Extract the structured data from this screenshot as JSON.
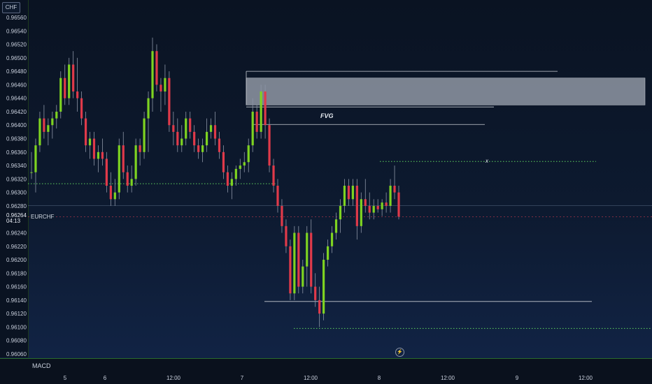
{
  "chart": {
    "currency": "CHF",
    "symbol": "EURCHF",
    "last_price": "0.96264",
    "countdown": "04:13",
    "annotations": {
      "fvg": "FVG",
      "x_mark": "x"
    },
    "indicator_pane": "MACD",
    "icons": {
      "flash": "lightning-icon"
    },
    "colors": {
      "bull": "#7ed321",
      "bear": "#e03a4a",
      "background": "#0d1a30",
      "dotted_level": "#5fd35f",
      "fvg_zone": "#8f96a3"
    }
  },
  "chart_data": {
    "type": "candlestick",
    "symbol": "EURCHF",
    "y_ticks": [
      "0.96560",
      "0.96540",
      "0.96520",
      "0.96500",
      "0.96480",
      "0.96460",
      "0.96440",
      "0.96420",
      "0.96400",
      "0.96380",
      "0.96360",
      "0.96340",
      "0.96320",
      "0.96300",
      "0.96280",
      "0.96260",
      "0.96240",
      "0.96220",
      "0.96200",
      "0.96180",
      "0.96160",
      "0.96140",
      "0.96120",
      "0.96100",
      "0.96080",
      "0.96060"
    ],
    "x_ticks": [
      "5",
      "6",
      "12:00",
      "7",
      "12:00",
      "8",
      "12:00",
      "9",
      "12:00"
    ],
    "ylim": [
      0.96058,
      0.9657
    ],
    "last_price": 0.96264,
    "candles": [
      [
        0.9633,
        0.9636,
        0.9632,
        0.9633
      ],
      [
        0.9633,
        0.9638,
        0.963,
        0.9637
      ],
      [
        0.9637,
        0.9642,
        0.9636,
        0.9641
      ],
      [
        0.9641,
        0.9643,
        0.9638,
        0.9639
      ],
      [
        0.9639,
        0.9641,
        0.9637,
        0.964
      ],
      [
        0.964,
        0.9642,
        0.9638,
        0.9641
      ],
      [
        0.9641,
        0.9643,
        0.96395,
        0.9642
      ],
      [
        0.9642,
        0.9648,
        0.9641,
        0.9647
      ],
      [
        0.9647,
        0.9649,
        0.9643,
        0.9644
      ],
      [
        0.9644,
        0.965,
        0.9643,
        0.9649
      ],
      [
        0.9649,
        0.9651,
        0.9644,
        0.9645
      ],
      [
        0.9645,
        0.965,
        0.9642,
        0.9644
      ],
      [
        0.9644,
        0.9645,
        0.964,
        0.9641
      ],
      [
        0.9641,
        0.9642,
        0.9636,
        0.9637
      ],
      [
        0.9637,
        0.9639,
        0.9635,
        0.9638
      ],
      [
        0.9638,
        0.9639,
        0.9634,
        0.9635
      ],
      [
        0.9635,
        0.9637,
        0.9633,
        0.9636
      ],
      [
        0.9636,
        0.9638,
        0.9634,
        0.9635
      ],
      [
        0.9635,
        0.9636,
        0.963,
        0.9631
      ],
      [
        0.9631,
        0.9633,
        0.9628,
        0.9629
      ],
      [
        0.9629,
        0.9632,
        0.9628,
        0.963
      ],
      [
        0.963,
        0.9638,
        0.9629,
        0.9637
      ],
      [
        0.9637,
        0.9639,
        0.9632,
        0.9633
      ],
      [
        0.9633,
        0.9634,
        0.963,
        0.9631
      ],
      [
        0.9631,
        0.9634,
        0.963,
        0.9632
      ],
      [
        0.9632,
        0.9638,
        0.9631,
        0.9637
      ],
      [
        0.9637,
        0.9638,
        0.9634,
        0.9636
      ],
      [
        0.9636,
        0.9642,
        0.9635,
        0.9641
      ],
      [
        0.9641,
        0.9645,
        0.9636,
        0.9644
      ],
      [
        0.9644,
        0.9653,
        0.9642,
        0.9651
      ],
      [
        0.9651,
        0.9652,
        0.9645,
        0.9646
      ],
      [
        0.9646,
        0.9647,
        0.9642,
        0.9645
      ],
      [
        0.9645,
        0.9649,
        0.9643,
        0.9647
      ],
      [
        0.9647,
        0.9648,
        0.9639,
        0.964
      ],
      [
        0.964,
        0.9642,
        0.9637,
        0.9639
      ],
      [
        0.9639,
        0.9641,
        0.9636,
        0.9637
      ],
      [
        0.9637,
        0.964,
        0.9636,
        0.9638
      ],
      [
        0.9638,
        0.9642,
        0.9637,
        0.9641
      ],
      [
        0.9641,
        0.9642,
        0.9638,
        0.9639
      ],
      [
        0.9639,
        0.964,
        0.9636,
        0.9637
      ],
      [
        0.9637,
        0.9638,
        0.9635,
        0.9636
      ],
      [
        0.9636,
        0.9638,
        0.96345,
        0.9637
      ],
      [
        0.9637,
        0.9641,
        0.9636,
        0.9639
      ],
      [
        0.9639,
        0.9641,
        0.9638,
        0.964
      ],
      [
        0.964,
        0.9642,
        0.9637,
        0.9638
      ],
      [
        0.9638,
        0.9639,
        0.9635,
        0.9636
      ],
      [
        0.9636,
        0.9637,
        0.9632,
        0.9633
      ],
      [
        0.9633,
        0.9634,
        0.963,
        0.9631
      ],
      [
        0.9631,
        0.9633,
        0.9629,
        0.9632
      ],
      [
        0.9632,
        0.9634,
        0.9631,
        0.96335
      ],
      [
        0.96335,
        0.9635,
        0.9632,
        0.9634
      ],
      [
        0.9634,
        0.9636,
        0.9633,
        0.96345
      ],
      [
        0.96345,
        0.9638,
        0.9633,
        0.9637
      ],
      [
        0.9637,
        0.9644,
        0.9636,
        0.9642
      ],
      [
        0.9642,
        0.9643,
        0.9638,
        0.9639
      ],
      [
        0.9639,
        0.9646,
        0.9638,
        0.9645
      ],
      [
        0.9645,
        0.9646,
        0.9638,
        0.964
      ],
      [
        0.964,
        0.9641,
        0.9633,
        0.9634
      ],
      [
        0.9634,
        0.9635,
        0.963,
        0.9631
      ],
      [
        0.9631,
        0.9632,
        0.9627,
        0.9628
      ],
      [
        0.9628,
        0.9629,
        0.9624,
        0.9625
      ],
      [
        0.9625,
        0.9626,
        0.9621,
        0.9622
      ],
      [
        0.9622,
        0.9623,
        0.9614,
        0.9615
      ],
      [
        0.9615,
        0.9625,
        0.9614,
        0.9624
      ],
      [
        0.9624,
        0.9625,
        0.9615,
        0.9616
      ],
      [
        0.9616,
        0.962,
        0.9615,
        0.9619
      ],
      [
        0.9619,
        0.9625,
        0.9616,
        0.9624
      ],
      [
        0.9624,
        0.9626,
        0.9615,
        0.9616
      ],
      [
        0.9616,
        0.9618,
        0.9613,
        0.9614
      ],
      [
        0.9614,
        0.9616,
        0.961,
        0.9612
      ],
      [
        0.9612,
        0.9621,
        0.9611,
        0.962
      ],
      [
        0.962,
        0.9623,
        0.9619,
        0.9622
      ],
      [
        0.9622,
        0.9625,
        0.9621,
        0.9624
      ],
      [
        0.9624,
        0.9627,
        0.9623,
        0.9626
      ],
      [
        0.9626,
        0.9629,
        0.9624,
        0.9628
      ],
      [
        0.9628,
        0.9632,
        0.9627,
        0.9631
      ],
      [
        0.9631,
        0.9632,
        0.9628,
        0.9629
      ],
      [
        0.9629,
        0.9632,
        0.9628,
        0.9631
      ],
      [
        0.9631,
        0.9632,
        0.9623,
        0.9625
      ],
      [
        0.9625,
        0.963,
        0.9624,
        0.9629
      ],
      [
        0.9629,
        0.9632,
        0.9627,
        0.9628
      ],
      [
        0.9628,
        0.963,
        0.9626,
        0.9627
      ],
      [
        0.9627,
        0.9629,
        0.9626,
        0.9628
      ],
      [
        0.9628,
        0.9629,
        0.9627,
        0.96275
      ],
      [
        0.96275,
        0.9629,
        0.96265,
        0.96285
      ],
      [
        0.96285,
        0.963,
        0.9627,
        0.9628
      ],
      [
        0.9628,
        0.9632,
        0.9627,
        0.9631
      ],
      [
        0.9631,
        0.9634,
        0.9629,
        0.963
      ],
      [
        0.963,
        0.9631,
        0.9626,
        0.96264
      ]
    ],
    "levels": [
      {
        "kind": "dotted",
        "price": 0.96313
      },
      {
        "kind": "dotted",
        "price": 0.96346
      },
      {
        "kind": "dotted",
        "price": 0.96098
      },
      {
        "kind": "solid",
        "price": 0.9648
      },
      {
        "kind": "solid",
        "price": 0.96427
      },
      {
        "kind": "solid",
        "price": 0.96401
      },
      {
        "kind": "solid",
        "price": 0.96138
      }
    ],
    "fvg_zone": [
      0.9643,
      0.9647
    ],
    "grid": false
  }
}
